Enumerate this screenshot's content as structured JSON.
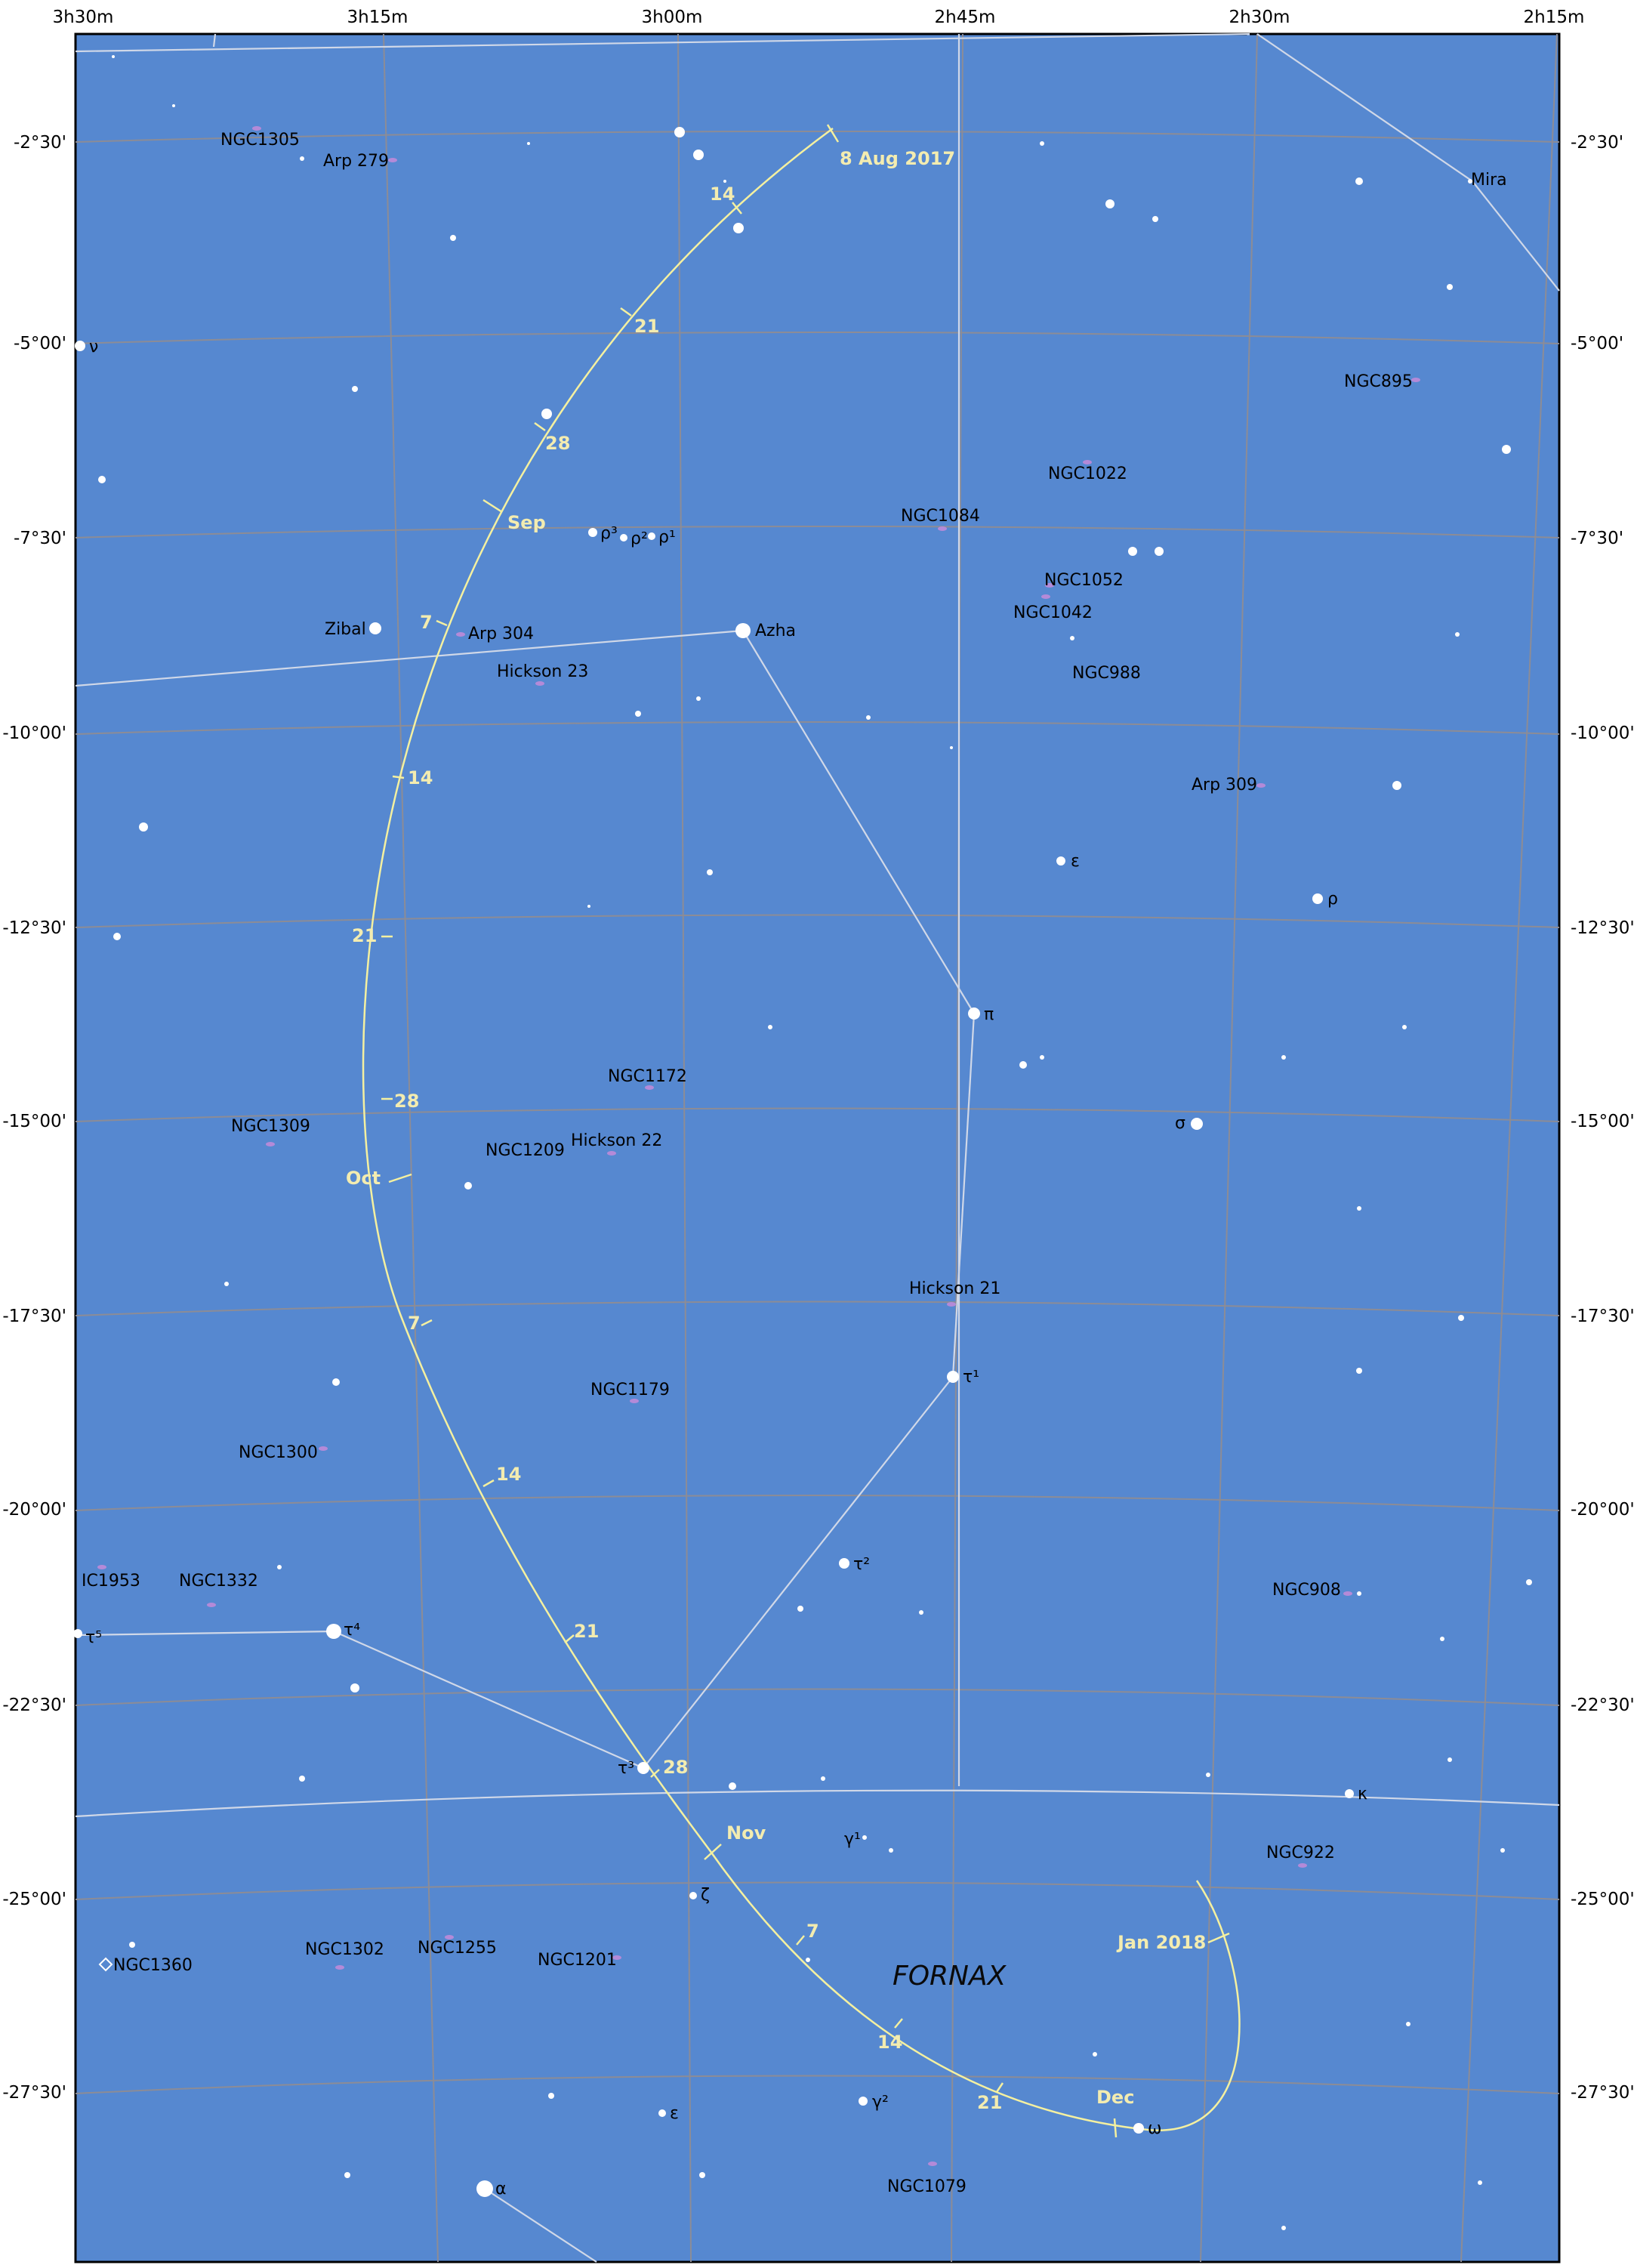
{
  "colors": {
    "background": "#5688d0",
    "grid": "#8c8c96",
    "constellation_lines": "#d0d8e8",
    "ecliptic_path": "#f4f0a0",
    "path_labels": "#f3ecb0",
    "star": "#ffffff",
    "object_labels": "#000000",
    "galaxy": "#b48ad8"
  },
  "constellation_name": "FORNAX",
  "ra_labels": [
    "3h30m",
    "3h15m",
    "3h00m",
    "2h45m",
    "2h30m",
    "2h15m"
  ],
  "dec_labels": [
    "-2°30'",
    "-5°00'",
    "-7°30'",
    "-10°00'",
    "-12°30'",
    "-15°00'",
    "-17°30'",
    "-20°00'",
    "-22°30'",
    "-25°00'",
    "-27°30'"
  ],
  "path": {
    "start_label": "8 Aug 2017",
    "end_label": "Jan 2018",
    "month_labels": [
      "Sep",
      "Oct",
      "Nov",
      "Dec"
    ],
    "day_labels": [
      "14",
      "21",
      "28",
      "7",
      "14",
      "21",
      "28",
      "7",
      "14",
      "21",
      "28",
      "7",
      "14",
      "21"
    ]
  },
  "stars": {
    "azha": "Azha",
    "zibal": "Zibal",
    "mira": "Mira",
    "nu": "ν",
    "pi": "π",
    "epsilon_upper": "ε",
    "rho_right": "ρ",
    "sigma": "σ",
    "tau1": "τ¹",
    "tau2": "τ²",
    "tau3": "τ³",
    "tau4": "τ⁴",
    "tau5": "τ⁵",
    "kappa": "κ",
    "gamma1": "γ¹",
    "gamma2": "γ²",
    "zeta": "ζ",
    "epsilon_lower": "ε",
    "alpha": "α",
    "omega": "ω",
    "rho1": "ρ¹",
    "rho2": "ρ²",
    "rho3": "ρ³"
  },
  "deep_sky": {
    "ngc1305": "NGC1305",
    "arp279": "Arp 279",
    "ngc895": "NGC895",
    "ngc1022": "NGC1022",
    "ngc1084": "NGC1084",
    "ngc1052": "NGC1052",
    "ngc1042": "NGC1042",
    "ngc988": "NGC988",
    "arp304": "Arp 304",
    "hickson23": "Hickson 23",
    "arp309": "Arp 309",
    "ngc1172": "NGC1172",
    "ngc1309": "NGC1309",
    "ngc1209": "NGC1209",
    "hickson22": "Hickson 22",
    "hickson21": "Hickson 21",
    "ngc1179": "NGC1179",
    "ngc1300": "NGC1300",
    "ngc908": "NGC908",
    "ic1953": "IC1953",
    "ngc1332": "NGC1332",
    "ngc922": "NGC922",
    "ngc1360": "NGC1360",
    "ngc1302": "NGC1302",
    "ngc1255": "NGC1255",
    "ngc1201": "NGC1201",
    "ngc1079": "NGC1079"
  }
}
